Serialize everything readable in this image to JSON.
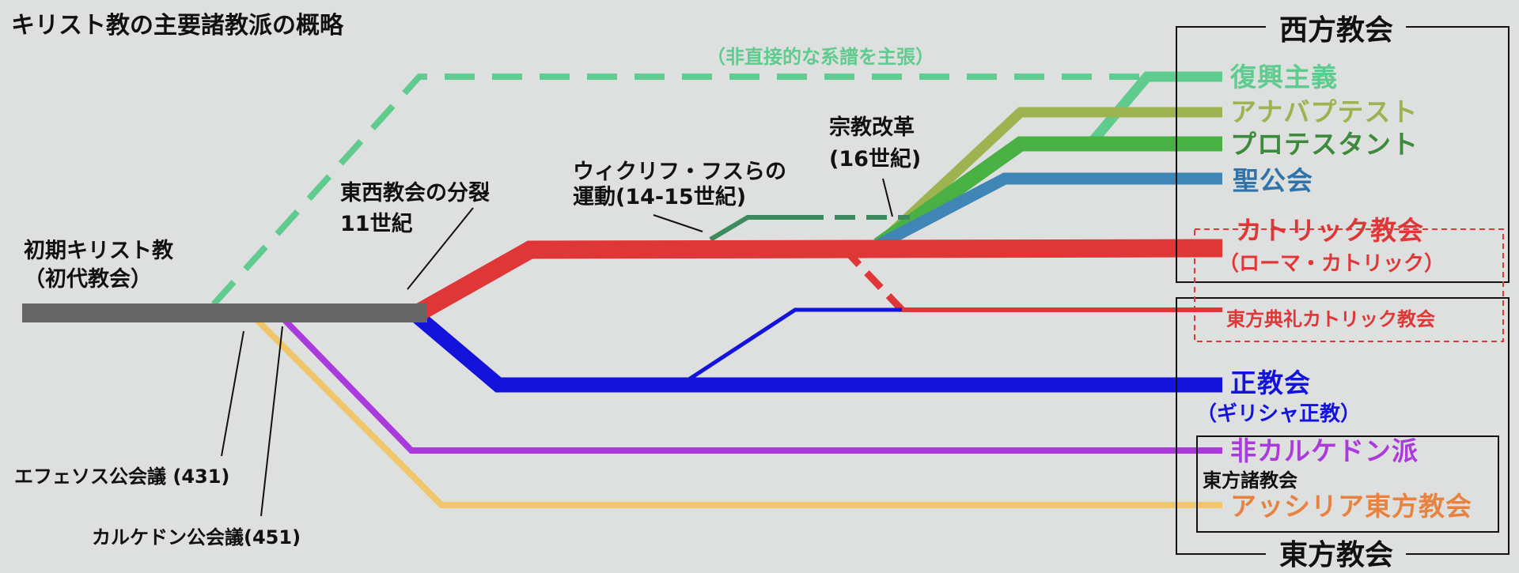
{
  "title": "キリスト教の主要諸教派の概略",
  "labels": {
    "early_church_line1": "初期キリスト教",
    "early_church_line2": "（初代教会）",
    "schism_line1": "東西教会の分裂",
    "schism_line2": "11世紀",
    "wycliffe_line1": "ウィクリフ・フスらの",
    "wycliffe_line2": "運動(14-15世紀)",
    "reformation_line1": "宗教改革",
    "reformation_line2": "(16世紀)",
    "indirect_lineage": "（非直接的な系譜を主張）",
    "ephesus": "エフェソス公会議 (431)",
    "chalcedon": "カルケドン公会議(451)"
  },
  "groups": {
    "western": "西方教会",
    "eastern": "東方教会",
    "oriental": "東方諸教会"
  },
  "branches": {
    "restorationism": "復興主義",
    "anabaptist": "アナバプテスト",
    "protestant": "プロテスタント",
    "anglican": "聖公会",
    "catholic_line1": "カトリック教会",
    "catholic_line2": "（ローマ・カトリック）",
    "eastern_catholic": "東方典礼カトリック教会",
    "orthodox_line1": "正教会",
    "orthodox_line2": "（ギリシャ正教）",
    "non_chalcedonian": "非カルケドン派",
    "assyrian": "アッシリア東方教会"
  },
  "colors": {
    "background": "#dde0de",
    "early": "#666666",
    "restorationism": "#5fcb8f",
    "anabaptist": "#9db350",
    "protestant": "#49b044",
    "anglican": "#3f86b7",
    "catholic": "#df3737",
    "orthodox": "#1313dc",
    "non_chalcedonian": "#ab3adc",
    "assyrian": "#efc66a",
    "wycliffe": "#3e8a5f",
    "text": "#111111"
  }
}
